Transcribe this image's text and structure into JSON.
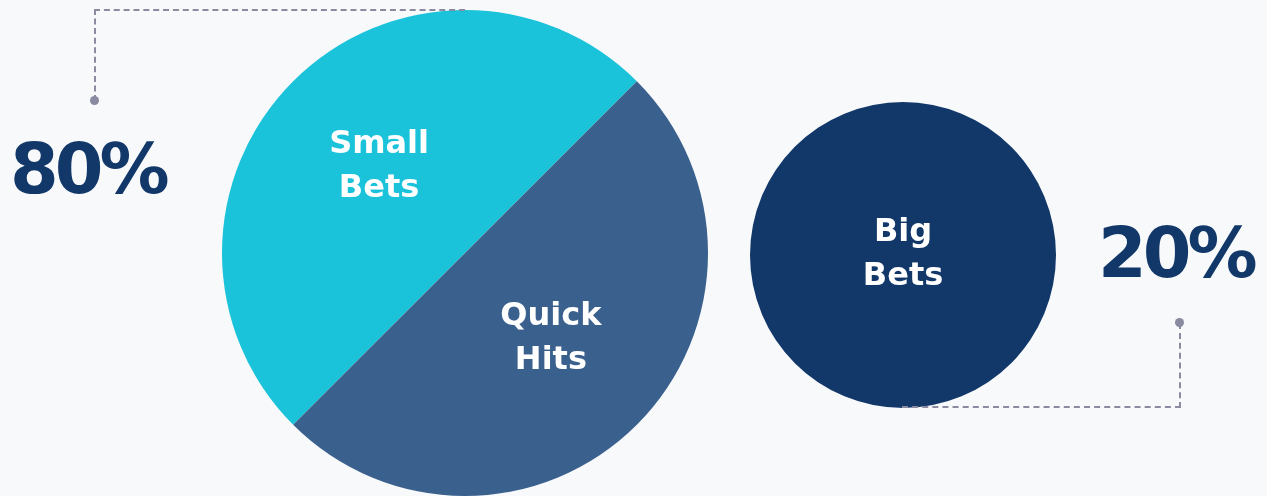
{
  "chart_data": [
    {
      "type": "pie",
      "categories": [
        "Small Bets",
        "Quick Hits"
      ],
      "values": [
        50,
        50
      ],
      "colors": [
        "#1ac2da",
        "#3a608e"
      ],
      "annotations": [
        "80%"
      ],
      "legend": false
    },
    {
      "type": "pie",
      "categories": [
        "Big Bets"
      ],
      "values": [
        100
      ],
      "colors": [
        "#12386a"
      ],
      "annotations": [
        "20%"
      ],
      "legend": false
    }
  ]
}
